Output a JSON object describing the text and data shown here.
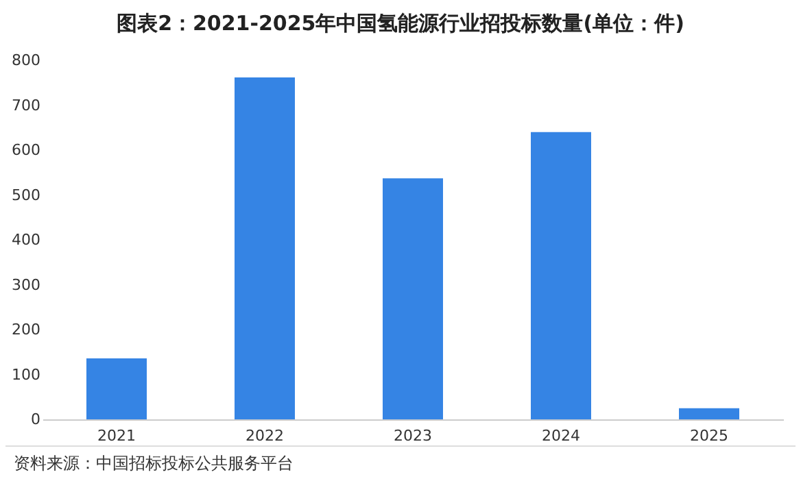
{
  "chart_data": {
    "type": "bar",
    "title": "图表2：2021-2025年中国氢能源行业招投标数量(单位：件)",
    "categories": [
      "2021",
      "2022",
      "2023",
      "2024",
      "2025"
    ],
    "values": [
      136,
      762,
      537,
      640,
      25
    ],
    "color": "#3584e4",
    "ylim": [
      0,
      800
    ],
    "yticks": [
      0,
      100,
      200,
      300,
      400,
      500,
      600,
      700,
      800
    ],
    "grid": false,
    "annotations": [
      "资料来源：中国招标投标公共服务平台"
    ]
  }
}
